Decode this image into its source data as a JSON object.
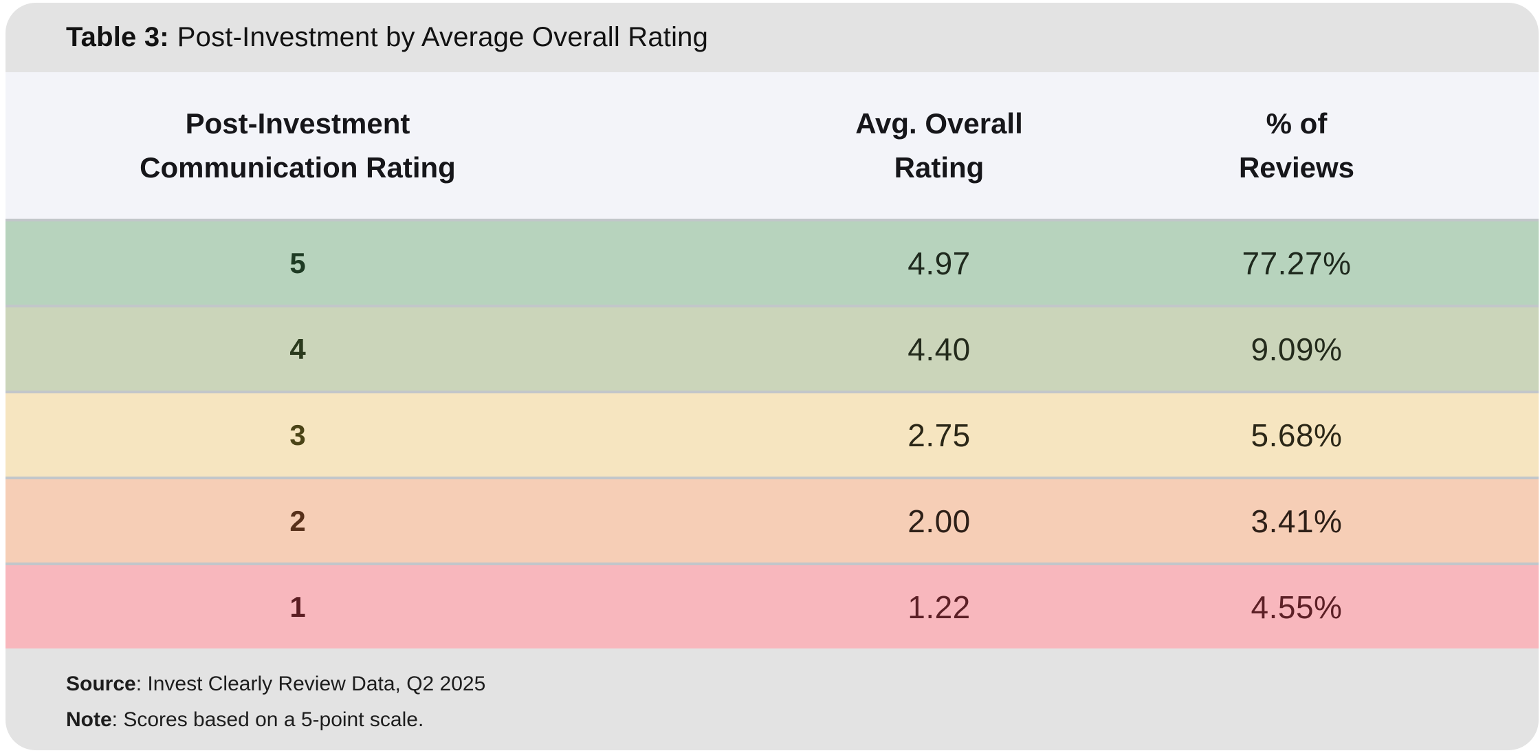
{
  "title": {
    "label": "Table 3:",
    "text": "Post-Investment by Average Overall Rating"
  },
  "table": {
    "columns": [
      {
        "line1": "Post-Investment",
        "line2": "Communication Rating"
      },
      {
        "line1": "Avg. Overall",
        "line2": "Rating"
      },
      {
        "line1": "% of",
        "line2": "Reviews"
      }
    ],
    "rows": [
      {
        "rating": "5",
        "avg_overall": "4.97",
        "pct_reviews": "77.27%",
        "bg": "#b7d3bd",
        "rating_color": "#1e3b24",
        "value_color": "#1f2a1e"
      },
      {
        "rating": "4",
        "avg_overall": "4.40",
        "pct_reviews": "9.09%",
        "bg": "#cbd5ba",
        "rating_color": "#2b3a1d",
        "value_color": "#242b1c"
      },
      {
        "rating": "3",
        "avg_overall": "2.75",
        "pct_reviews": "5.68%",
        "bg": "#f6e5c0",
        "rating_color": "#4a4316",
        "value_color": "#2b2717"
      },
      {
        "rating": "2",
        "avg_overall": "2.00",
        "pct_reviews": "3.41%",
        "bg": "#f6ceb6",
        "rating_color": "#57301a",
        "value_color": "#2e2018"
      },
      {
        "rating": "1",
        "avg_overall": "1.22",
        "pct_reviews": "4.55%",
        "bg": "#f8b7bd",
        "rating_color": "#5b1d22",
        "value_color": "#5c2026"
      }
    ]
  },
  "footer": {
    "source_label": "Source",
    "source_text": ": Invest Clearly Review Data, Q2 2025",
    "note_label": "Note",
    "note_text": ": Scores based on a 5-point scale."
  },
  "colors": {
    "title_bar_bg": "#e3e3e3",
    "header_bg": "#f3f4f9",
    "separator": "#c2c6ca",
    "footer_bg": "#e3e3e3",
    "green_row": "#b7d3bd",
    "sage_row": "#cbd5ba",
    "yellow_row": "#f6e5c0",
    "salmon_row": "#f6ceb6",
    "pink_row": "#f8b7bd"
  },
  "chart_data": {
    "type": "table",
    "title": "Table 3: Post-Investment by Average Overall Rating",
    "columns": [
      "Post-Investment Communication Rating",
      "Avg. Overall Rating",
      "% of Reviews"
    ],
    "rows": [
      [
        5,
        4.97,
        "77.27%"
      ],
      [
        4,
        4.4,
        "9.09%"
      ],
      [
        3,
        2.75,
        "5.68%"
      ],
      [
        2,
        2.0,
        "3.41%"
      ],
      [
        1,
        1.22,
        "4.55%"
      ]
    ],
    "source": "Invest Clearly Review Data, Q2 2025",
    "note": "Scores based on a 5-point scale.",
    "row_color_scale": [
      "#b7d3bd",
      "#cbd5ba",
      "#f6e5c0",
      "#f6ceb6",
      "#f8b7bd"
    ]
  }
}
